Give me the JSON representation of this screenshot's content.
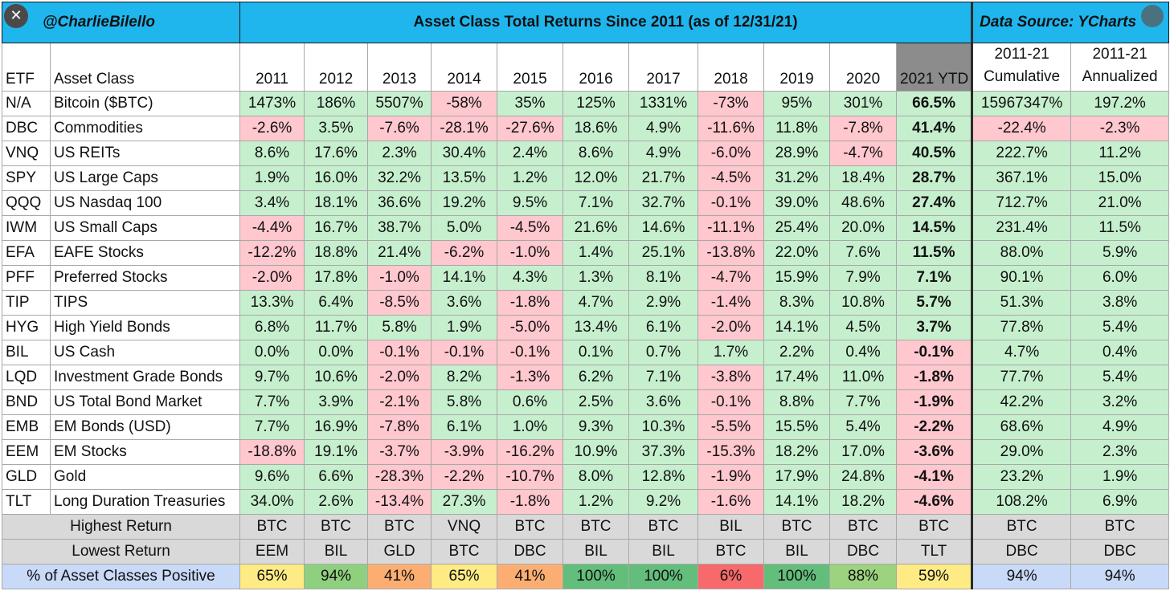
{
  "header": {
    "handle": "@CharlieBilello",
    "title": "Asset Class Total Returns Since 2011 (as of 12/31/21)",
    "source": "Data Source: YCharts"
  },
  "columns": {
    "etf": "ETF",
    "asset_class": "Asset Class",
    "years": [
      "2011",
      "2012",
      "2013",
      "2014",
      "2015",
      "2016",
      "2017",
      "2018",
      "2019",
      "2020",
      "2021 YTD"
    ],
    "cumulative": [
      "2011-21",
      "Cumulative"
    ],
    "annualized": [
      "2011-21",
      "Annualized"
    ]
  },
  "summary_labels": {
    "highest": "Highest Return",
    "lowest": "Lowest Return",
    "positive": "% of Asset Classes Positive"
  },
  "chart_data": {
    "type": "table",
    "rows": [
      {
        "etf": "N/A",
        "name": "Bitcoin ($BTC)",
        "values": [
          "1473%",
          "186%",
          "5507%",
          "-58%",
          "35%",
          "125%",
          "1331%",
          "-73%",
          "95%",
          "301%",
          "66.5%"
        ],
        "cumulative": "15967347%",
        "annualized": "197.2%"
      },
      {
        "etf": "DBC",
        "name": "Commodities",
        "values": [
          "-2.6%",
          "3.5%",
          "-7.6%",
          "-28.1%",
          "-27.6%",
          "18.6%",
          "4.9%",
          "-11.6%",
          "11.8%",
          "-7.8%",
          "41.4%"
        ],
        "cumulative": "-22.4%",
        "annualized": "-2.3%"
      },
      {
        "etf": "VNQ",
        "name": "US REITs",
        "values": [
          "8.6%",
          "17.6%",
          "2.3%",
          "30.4%",
          "2.4%",
          "8.6%",
          "4.9%",
          "-6.0%",
          "28.9%",
          "-4.7%",
          "40.5%"
        ],
        "cumulative": "222.7%",
        "annualized": "11.2%"
      },
      {
        "etf": "SPY",
        "name": "US Large Caps",
        "values": [
          "1.9%",
          "16.0%",
          "32.2%",
          "13.5%",
          "1.2%",
          "12.0%",
          "21.7%",
          "-4.5%",
          "31.2%",
          "18.4%",
          "28.7%"
        ],
        "cumulative": "367.1%",
        "annualized": "15.0%"
      },
      {
        "etf": "QQQ",
        "name": "US Nasdaq 100",
        "values": [
          "3.4%",
          "18.1%",
          "36.6%",
          "19.2%",
          "9.5%",
          "7.1%",
          "32.7%",
          "-0.1%",
          "39.0%",
          "48.6%",
          "27.4%"
        ],
        "cumulative": "712.7%",
        "annualized": "21.0%"
      },
      {
        "etf": "IWM",
        "name": "US Small Caps",
        "values": [
          "-4.4%",
          "16.7%",
          "38.7%",
          "5.0%",
          "-4.5%",
          "21.6%",
          "14.6%",
          "-11.1%",
          "25.4%",
          "20.0%",
          "14.5%"
        ],
        "cumulative": "231.4%",
        "annualized": "11.5%"
      },
      {
        "etf": "EFA",
        "name": "EAFE Stocks",
        "values": [
          "-12.2%",
          "18.8%",
          "21.4%",
          "-6.2%",
          "-1.0%",
          "1.4%",
          "25.1%",
          "-13.8%",
          "22.0%",
          "7.6%",
          "11.5%"
        ],
        "cumulative": "88.0%",
        "annualized": "5.9%"
      },
      {
        "etf": "PFF",
        "name": "Preferred Stocks",
        "values": [
          "-2.0%",
          "17.8%",
          "-1.0%",
          "14.1%",
          "4.3%",
          "1.3%",
          "8.1%",
          "-4.7%",
          "15.9%",
          "7.9%",
          "7.1%"
        ],
        "cumulative": "90.1%",
        "annualized": "6.0%"
      },
      {
        "etf": "TIP",
        "name": "TIPS",
        "values": [
          "13.3%",
          "6.4%",
          "-8.5%",
          "3.6%",
          "-1.8%",
          "4.7%",
          "2.9%",
          "-1.4%",
          "8.3%",
          "10.8%",
          "5.7%"
        ],
        "cumulative": "51.3%",
        "annualized": "3.8%"
      },
      {
        "etf": "HYG",
        "name": "High Yield Bonds",
        "values": [
          "6.8%",
          "11.7%",
          "5.8%",
          "1.9%",
          "-5.0%",
          "13.4%",
          "6.1%",
          "-2.0%",
          "14.1%",
          "4.5%",
          "3.7%"
        ],
        "cumulative": "77.8%",
        "annualized": "5.4%"
      },
      {
        "etf": "BIL",
        "name": "US Cash",
        "values": [
          "0.0%",
          "0.0%",
          "-0.1%",
          "-0.1%",
          "-0.1%",
          "0.1%",
          "0.7%",
          "1.7%",
          "2.2%",
          "0.4%",
          "-0.1%"
        ],
        "cumulative": "4.7%",
        "annualized": "0.4%"
      },
      {
        "etf": "LQD",
        "name": "Investment Grade Bonds",
        "values": [
          "9.7%",
          "10.6%",
          "-2.0%",
          "8.2%",
          "-1.3%",
          "6.2%",
          "7.1%",
          "-3.8%",
          "17.4%",
          "11.0%",
          "-1.8%"
        ],
        "cumulative": "77.7%",
        "annualized": "5.4%"
      },
      {
        "etf": "BND",
        "name": "US Total Bond Market",
        "values": [
          "7.7%",
          "3.9%",
          "-2.1%",
          "5.8%",
          "0.6%",
          "2.5%",
          "3.6%",
          "-0.1%",
          "8.8%",
          "7.7%",
          "-1.9%"
        ],
        "cumulative": "42.2%",
        "annualized": "3.2%"
      },
      {
        "etf": "EMB",
        "name": "EM Bonds (USD)",
        "values": [
          "7.7%",
          "16.9%",
          "-7.8%",
          "6.1%",
          "1.0%",
          "9.3%",
          "10.3%",
          "-5.5%",
          "15.5%",
          "5.4%",
          "-2.2%"
        ],
        "cumulative": "68.6%",
        "annualized": "4.9%"
      },
      {
        "etf": "EEM",
        "name": "EM Stocks",
        "values": [
          "-18.8%",
          "19.1%",
          "-3.7%",
          "-3.9%",
          "-16.2%",
          "10.9%",
          "37.3%",
          "-15.3%",
          "18.2%",
          "17.0%",
          "-3.6%"
        ],
        "cumulative": "29.0%",
        "annualized": "2.3%"
      },
      {
        "etf": "GLD",
        "name": "Gold",
        "values": [
          "9.6%",
          "6.6%",
          "-28.3%",
          "-2.2%",
          "-10.7%",
          "8.0%",
          "12.8%",
          "-1.9%",
          "17.9%",
          "24.8%",
          "-4.1%"
        ],
        "cumulative": "23.2%",
        "annualized": "1.9%"
      },
      {
        "etf": "TLT",
        "name": "Long Duration Treasuries",
        "values": [
          "34.0%",
          "2.6%",
          "-13.4%",
          "27.3%",
          "-1.8%",
          "1.2%",
          "9.2%",
          "-1.6%",
          "14.1%",
          "18.2%",
          "-4.6%"
        ],
        "cumulative": "108.2%",
        "annualized": "6.9%"
      }
    ],
    "highest": [
      "BTC",
      "BTC",
      "BTC",
      "VNQ",
      "BTC",
      "BTC",
      "BTC",
      "BIL",
      "BTC",
      "BTC",
      "BTC",
      "BTC",
      "BTC"
    ],
    "lowest": [
      "EEM",
      "BIL",
      "GLD",
      "BTC",
      "DBC",
      "BIL",
      "BIL",
      "BTC",
      "BIL",
      "DBC",
      "TLT",
      "DBC",
      "DBC"
    ],
    "pct_positive": [
      "65%",
      "94%",
      "41%",
      "65%",
      "41%",
      "100%",
      "100%",
      "6%",
      "100%",
      "88%",
      "59%",
      "94%",
      "94%"
    ],
    "pct_positive_colors": [
      "#ffeb84",
      "#8fd07f",
      "#fcae72",
      "#ffeb84",
      "#fcae72",
      "#63be7b",
      "#63be7b",
      "#f8696b",
      "#63be7b",
      "#9cd37e",
      "#ffeb84",
      "#c9daf8",
      "#c9daf8"
    ]
  }
}
